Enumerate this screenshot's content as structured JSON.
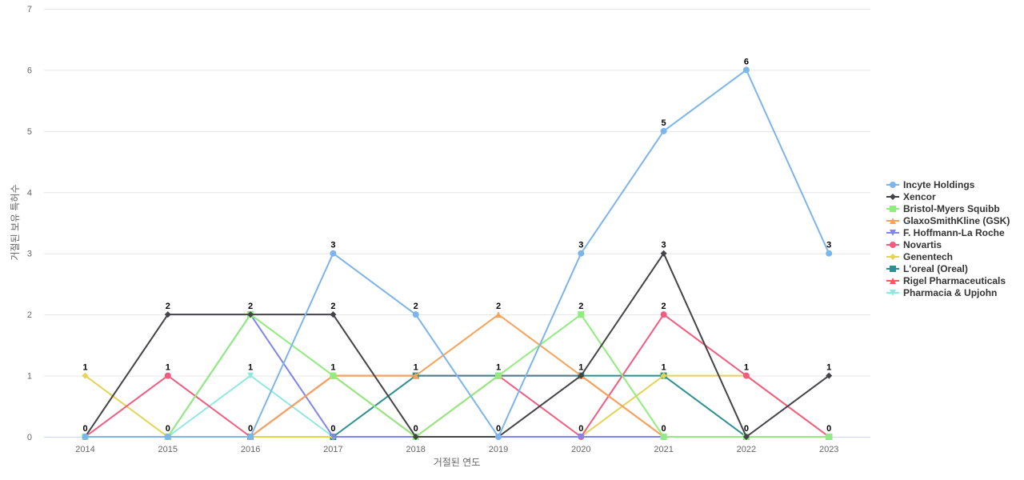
{
  "chart_data": {
    "type": "line",
    "title": "",
    "xlabel": "거절된 연도",
    "ylabel": "거절된 보유 특허수",
    "categories": [
      "2014",
      "2015",
      "2016",
      "2017",
      "2018",
      "2019",
      "2020",
      "2021",
      "2022",
      "2023"
    ],
    "y_ticks": [
      "0",
      "1",
      "2",
      "3",
      "4",
      "5",
      "6",
      "7"
    ],
    "ylim": [
      0,
      7
    ],
    "grid": true,
    "legend_position": "right",
    "series": [
      {
        "name": "Incyte Holdings",
        "color": "#7cb5ec",
        "marker": "circle",
        "values": [
          0,
          0,
          0,
          3,
          2,
          0,
          3,
          5,
          6,
          3
        ]
      },
      {
        "name": "Xencor",
        "color": "#434348",
        "marker": "diamond",
        "values": [
          0,
          2,
          2,
          2,
          0,
          0,
          1,
          3,
          0,
          1
        ]
      },
      {
        "name": "Bristol-Myers Squibb",
        "color": "#90ed7d",
        "marker": "square",
        "values": [
          0,
          0,
          2,
          1,
          0,
          1,
          2,
          0,
          0,
          0
        ]
      },
      {
        "name": "GlaxoSmithKline (GSK)",
        "color": "#f7a35c",
        "marker": "triangle",
        "values": [
          0,
          0,
          0,
          1,
          1,
          2,
          1,
          0,
          0,
          0
        ]
      },
      {
        "name": "F. Hoffmann-La Roche",
        "color": "#8085e9",
        "marker": "triangle-down",
        "values": [
          0,
          0,
          2,
          0,
          0,
          0,
          0,
          0,
          0,
          0
        ]
      },
      {
        "name": "Novartis",
        "color": "#f15c80",
        "marker": "circle",
        "values": [
          0,
          1,
          0,
          1,
          0,
          1,
          0,
          2,
          1,
          0
        ]
      },
      {
        "name": "Genentech",
        "color": "#e4d354",
        "marker": "diamond",
        "values": [
          1,
          0,
          0,
          0,
          0,
          0,
          0,
          1,
          1,
          0
        ]
      },
      {
        "name": "L'oreal (Oreal)",
        "color": "#2b908f",
        "marker": "square",
        "values": [
          0,
          0,
          0,
          0,
          1,
          1,
          1,
          1,
          0,
          0
        ]
      },
      {
        "name": "Rigel Pharmaceuticals",
        "color": "#f45b5b",
        "marker": "triangle",
        "values": [
          0,
          0,
          0,
          1,
          1,
          1,
          1,
          0,
          0,
          0
        ]
      },
      {
        "name": "Pharmacia & Upjohn",
        "color": "#91e8e1",
        "marker": "triangle-down",
        "values": [
          0,
          0,
          1,
          0,
          0,
          0,
          0,
          0,
          0,
          0
        ]
      }
    ],
    "data_labels": [
      {
        "x": "2014",
        "y": 1,
        "text": "1"
      },
      {
        "x": "2014",
        "y": 0,
        "text": "0"
      },
      {
        "x": "2015",
        "y": 2,
        "text": "2"
      },
      {
        "x": "2015",
        "y": 1,
        "text": "1"
      },
      {
        "x": "2015",
        "y": 0,
        "text": "0"
      },
      {
        "x": "2016",
        "y": 2,
        "text": "2"
      },
      {
        "x": "2016",
        "y": 1,
        "text": "1"
      },
      {
        "x": "2016",
        "y": 0,
        "text": "0"
      },
      {
        "x": "2017",
        "y": 3,
        "text": "3"
      },
      {
        "x": "2017",
        "y": 2,
        "text": "2"
      },
      {
        "x": "2017",
        "y": 1,
        "text": "1"
      },
      {
        "x": "2017",
        "y": 0,
        "text": "0"
      },
      {
        "x": "2018",
        "y": 2,
        "text": "2"
      },
      {
        "x": "2018",
        "y": 1,
        "text": "1"
      },
      {
        "x": "2018",
        "y": 0,
        "text": "0"
      },
      {
        "x": "2019",
        "y": 2,
        "text": "2"
      },
      {
        "x": "2019",
        "y": 1,
        "text": "1"
      },
      {
        "x": "2019",
        "y": 0,
        "text": "0"
      },
      {
        "x": "2020",
        "y": 3,
        "text": "3"
      },
      {
        "x": "2020",
        "y": 2,
        "text": "2"
      },
      {
        "x": "2020",
        "y": 1,
        "text": "1"
      },
      {
        "x": "2020",
        "y": 0,
        "text": "0"
      },
      {
        "x": "2021",
        "y": 5,
        "text": "5"
      },
      {
        "x": "2021",
        "y": 3,
        "text": "3"
      },
      {
        "x": "2021",
        "y": 2,
        "text": "2"
      },
      {
        "x": "2021",
        "y": 1,
        "text": "1"
      },
      {
        "x": "2021",
        "y": 0,
        "text": "0"
      },
      {
        "x": "2022",
        "y": 6,
        "text": "6"
      },
      {
        "x": "2022",
        "y": 1,
        "text": "1"
      },
      {
        "x": "2022",
        "y": 0,
        "text": "0"
      },
      {
        "x": "2023",
        "y": 3,
        "text": "3"
      },
      {
        "x": "2023",
        "y": 1,
        "text": "1"
      },
      {
        "x": "2023",
        "y": 0,
        "text": "0"
      }
    ]
  }
}
